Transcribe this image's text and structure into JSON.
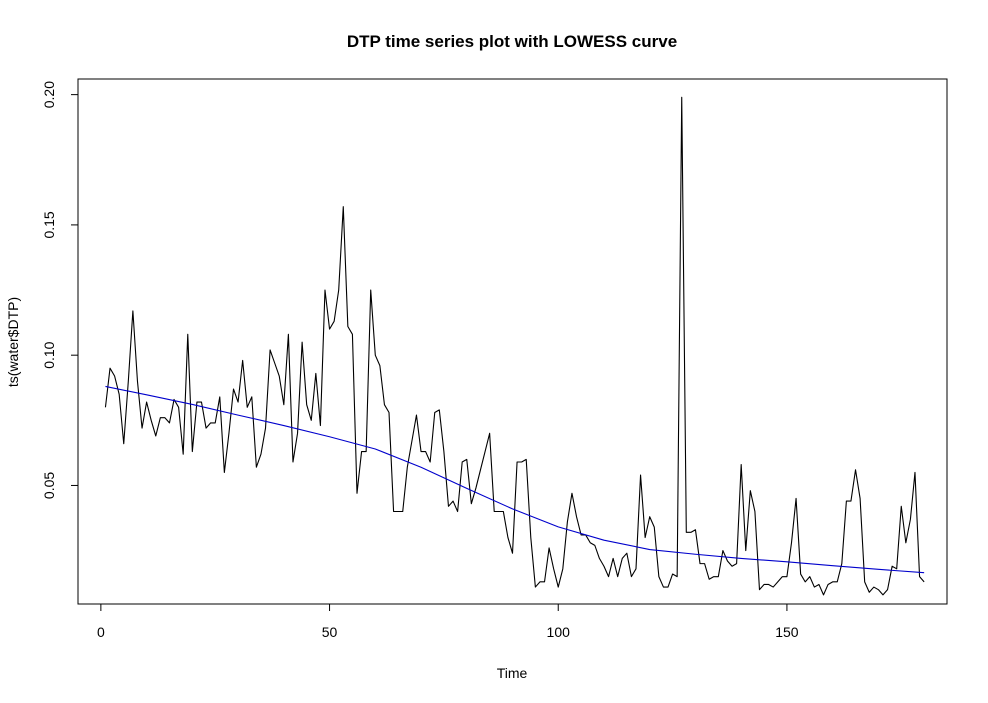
{
  "chart_data": {
    "type": "line",
    "title": "DTP time series plot with LOWESS curve",
    "xlabel": "Time",
    "ylabel": "ts(water$DTP)",
    "xlim": [
      -5,
      185
    ],
    "ylim": [
      0.0045,
      0.206
    ],
    "x_ticks": [
      0,
      50,
      100,
      150
    ],
    "x_tick_labels": [
      "0",
      "50",
      "100",
      "150"
    ],
    "y_ticks": [
      0.05,
      0.1,
      0.15,
      0.2
    ],
    "y_tick_labels": [
      "0.05",
      "0.10",
      "0.15",
      "0.20"
    ],
    "grid": false,
    "legend": "none",
    "series": [
      {
        "color": "#000000",
        "x_start": 1,
        "x_step": 1,
        "values": [
          0.08,
          0.095,
          0.092,
          0.085,
          0.066,
          0.09,
          0.117,
          0.09,
          0.072,
          0.082,
          0.075,
          0.069,
          0.076,
          0.076,
          0.074,
          0.083,
          0.08,
          0.062,
          0.108,
          0.063,
          0.082,
          0.082,
          0.072,
          0.074,
          0.074,
          0.084,
          0.055,
          0.07,
          0.087,
          0.082,
          0.098,
          0.08,
          0.084,
          0.057,
          0.062,
          0.072,
          0.102,
          0.097,
          0.092,
          0.081,
          0.108,
          0.059,
          0.07,
          0.105,
          0.081,
          0.075,
          0.093,
          0.073,
          0.125,
          0.11,
          0.113,
          0.125,
          0.157,
          0.111,
          0.108,
          0.047,
          0.063,
          0.063,
          0.125,
          0.1,
          0.096,
          0.081,
          0.078,
          0.04,
          0.04,
          0.04,
          0.057,
          0.067,
          0.077,
          0.063,
          0.063,
          0.059,
          0.078,
          0.079,
          0.063,
          0.042,
          0.044,
          0.04,
          0.059,
          0.06,
          0.043,
          0.049,
          0.056,
          0.063,
          0.07,
          0.04,
          0.04,
          0.04,
          0.03,
          0.024,
          0.059,
          0.059,
          0.06,
          0.03,
          0.011,
          0.013,
          0.013,
          0.026,
          0.018,
          0.011,
          0.018,
          0.036,
          0.047,
          0.038,
          0.031,
          0.031,
          0.028,
          0.027,
          0.022,
          0.019,
          0.015,
          0.022,
          0.015,
          0.022,
          0.024,
          0.015,
          0.018,
          0.054,
          0.03,
          0.038,
          0.034,
          0.015,
          0.011,
          0.011,
          0.016,
          0.015,
          0.199,
          0.032,
          0.032,
          0.033,
          0.02,
          0.02,
          0.014,
          0.015,
          0.015,
          0.025,
          0.021,
          0.019,
          0.02,
          0.058,
          0.025,
          0.048,
          0.04,
          0.01,
          0.012,
          0.012,
          0.011,
          0.013,
          0.015,
          0.015,
          0.028,
          0.045,
          0.016,
          0.013,
          0.015,
          0.011,
          0.012,
          0.008,
          0.012,
          0.013,
          0.013,
          0.02,
          0.044,
          0.044,
          0.056,
          0.045,
          0.013,
          0.009,
          0.011,
          0.01,
          0.008,
          0.01,
          0.019,
          0.018,
          0.042,
          0.028,
          0.037,
          0.055,
          0.015,
          0.013
        ]
      },
      {
        "color": "#0000cc",
        "x": [
          1,
          10,
          20,
          30,
          40,
          50,
          60,
          70,
          80,
          90,
          100,
          110,
          120,
          130,
          140,
          150,
          160,
          170,
          180
        ],
        "values": [
          0.088,
          0.0848,
          0.0811,
          0.077,
          0.073,
          0.0687,
          0.064,
          0.057,
          0.0489,
          0.041,
          0.0341,
          0.029,
          0.0254,
          0.0236,
          0.022,
          0.0207,
          0.0192,
          0.0178,
          0.0165
        ]
      }
    ]
  }
}
